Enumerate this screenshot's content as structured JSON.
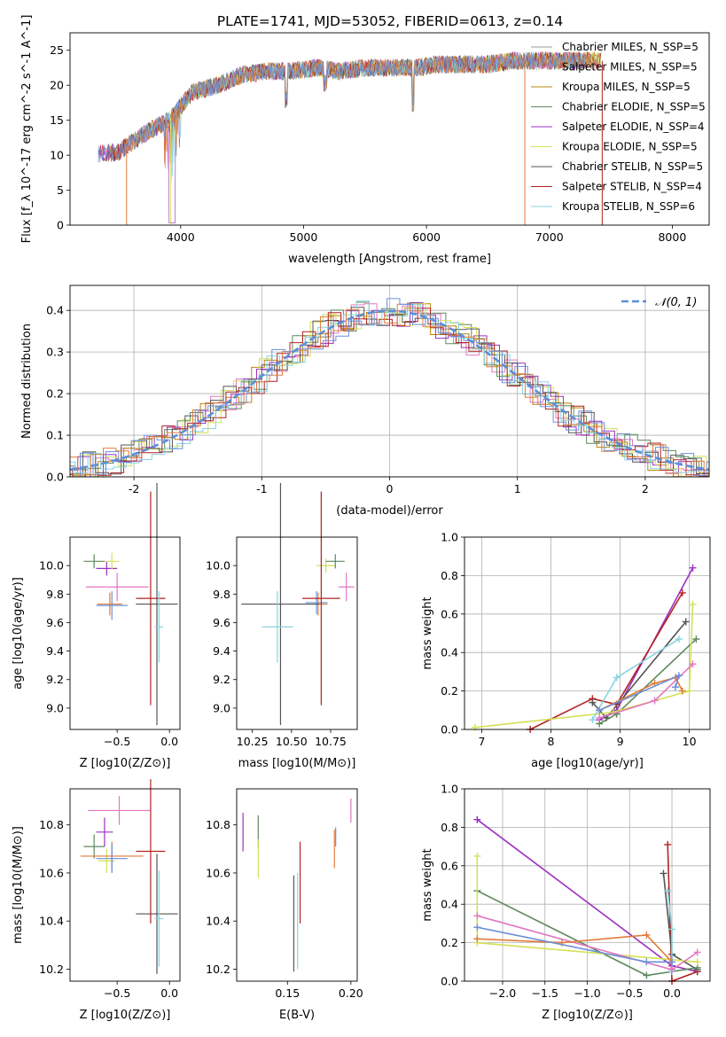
{
  "figure": {
    "title": "PLATE=1741, MJD=53052, FIBERID=0613, z=0.14"
  },
  "chart_data": [
    {
      "id": "spectrum",
      "type": "line",
      "xlabel": "wavelength [Angstrom, rest frame]",
      "ylabel": "Flux [f_λ 10^-17 erg cm^-2 s^-1 A^-1]",
      "xlim": [
        3100,
        8300
      ],
      "ylim": [
        0,
        27.5
      ],
      "xticks": [
        4000,
        5000,
        6000,
        7000,
        8000
      ],
      "yticks": [
        0,
        5,
        10,
        15,
        20,
        25
      ],
      "grid": false,
      "legend_position": "right",
      "spectrum_envelope": {
        "wavelength": [
          3350,
          3500,
          3700,
          3900,
          4100,
          4300,
          4500,
          4700,
          4900,
          5100,
          5300,
          5500,
          5700,
          5900,
          6100,
          6300,
          6500,
          6700,
          6900,
          7100,
          7300,
          7500
        ],
        "flux": [
          10.2,
          10.5,
          13,
          15,
          19,
          20,
          21.5,
          22,
          22,
          22.5,
          22,
          22.5,
          22.5,
          22.5,
          23,
          23,
          23,
          23.5,
          23.5,
          23.5,
          23.5,
          23.5
        ]
      },
      "series": [
        {
          "name": "Chabrier MILES, N_SSP=5",
          "color": "#ffffff"
        },
        {
          "name": "Salpeter MILES, N_SSP=5",
          "color": "#e377c2"
        },
        {
          "name": "Kroupa MILES, N_SSP=5",
          "color": "#b8860b"
        },
        {
          "name": "Chabrier ELODIE, N_SSP=5",
          "color": "#5e8a5e"
        },
        {
          "name": "Salpeter ELODIE, N_SSP=4",
          "color": "#9b30c0"
        },
        {
          "name": "Kroupa ELODIE, N_SSP=5",
          "color": "#d4e157"
        },
        {
          "name": "Chabrier STELIB, N_SSP=5",
          "color": "#555555"
        },
        {
          "name": "Salpeter STELIB, N_SSP=4",
          "color": "#b22222"
        },
        {
          "name": "Kroupa STELIB, N_SSP=6",
          "color": "#87d3e0"
        }
      ]
    },
    {
      "id": "residuals",
      "type": "line",
      "xlabel": "(data-model)/error",
      "ylabel": "Normed distribution",
      "xlim": [
        -2.5,
        2.5
      ],
      "ylim": [
        0,
        0.46
      ],
      "xticks": [
        -2,
        -1,
        0,
        1,
        2
      ],
      "yticks": [
        0.0,
        0.1,
        0.2,
        0.3,
        0.4
      ],
      "grid": true,
      "legend": "𝒩(0, 1)",
      "legend_position": "top-right",
      "gaussian": {
        "mean": 0,
        "sigma": 1,
        "color": "#5b8fd8"
      },
      "hist_colors": [
        "#e377c2",
        "#b8860b",
        "#5e8a5e",
        "#9b30c0",
        "#d4e157",
        "#555555",
        "#b22222",
        "#87d3e0",
        "#e07b39",
        "#6d8fd8"
      ]
    },
    {
      "id": "age_vs_Z",
      "type": "scatter",
      "xlabel": "Z [log10(Z/Z⊙)]",
      "ylabel": "age [log10(age/yr)]",
      "xlim": [
        -0.95,
        0.1
      ],
      "ylim": [
        8.85,
        10.2
      ],
      "xticks": [
        -0.5,
        0.0
      ],
      "xtick_labels": [
        "−0.5",
        "0.0"
      ],
      "yticks": [
        9.0,
        9.2,
        9.4,
        9.6,
        9.8,
        10.0
      ],
      "grid": false,
      "points": [
        {
          "x": -0.72,
          "y": 10.03,
          "xerr": 0.1,
          "yerr": 0.05,
          "color": "#5e8a5e"
        },
        {
          "x": -0.6,
          "y": 9.98,
          "xerr": 0.1,
          "yerr": 0.05,
          "color": "#9b30c0"
        },
        {
          "x": -0.55,
          "y": 10.03,
          "xerr": 0.07,
          "yerr": 0.06,
          "color": "#d4e157"
        },
        {
          "x": -0.5,
          "y": 9.85,
          "xerr": 0.3,
          "yerr": 0.1,
          "color": "#e377c2"
        },
        {
          "x": -0.57,
          "y": 9.73,
          "xerr": 0.12,
          "yerr": 0.08,
          "color": "#e07b39"
        },
        {
          "x": -0.55,
          "y": 9.72,
          "xerr": 0.15,
          "yerr": 0.1,
          "color": "#6d8fd8"
        },
        {
          "x": -0.12,
          "y": 9.73,
          "xerr": 0.2,
          "yerr": 0.85,
          "color": "#555555"
        },
        {
          "x": -0.18,
          "y": 9.77,
          "xerr": 0.14,
          "yerr": 0.75,
          "color": "#b22222"
        },
        {
          "x": -0.1,
          "y": 9.57,
          "xerr": 0.04,
          "yerr": 0.25,
          "color": "#87d3e0"
        }
      ]
    },
    {
      "id": "age_vs_mass",
      "type": "scatter",
      "xlabel": "mass [log10(M/M⊙)]",
      "ylabel": "",
      "xlim": [
        10.15,
        10.92
      ],
      "ylim": [
        8.85,
        10.2
      ],
      "xticks": [
        10.25,
        10.5,
        10.75
      ],
      "xtick_labels": [
        "10.25",
        "10.50",
        "10.75"
      ],
      "yticks": [
        9.0,
        9.2,
        9.4,
        9.6,
        9.8,
        10.0
      ],
      "grid": false,
      "points": [
        {
          "x": 10.72,
          "y": 10.0,
          "xerr": 0.06,
          "yerr": 0.05,
          "color": "#d4e157"
        },
        {
          "x": 10.78,
          "y": 10.03,
          "xerr": 0.06,
          "yerr": 0.05,
          "color": "#5e8a5e"
        },
        {
          "x": 10.85,
          "y": 9.85,
          "xerr": 0.05,
          "yerr": 0.1,
          "color": "#e377c2"
        },
        {
          "x": 10.67,
          "y": 9.73,
          "xerr": 0.06,
          "yerr": 0.08,
          "color": "#e07b39"
        },
        {
          "x": 10.66,
          "y": 9.74,
          "xerr": 0.07,
          "yerr": 0.08,
          "color": "#6d8fd8"
        },
        {
          "x": 10.43,
          "y": 9.73,
          "xerr": 0.25,
          "yerr": 0.85,
          "color": "#555555"
        },
        {
          "x": 10.69,
          "y": 9.77,
          "xerr": 0.12,
          "yerr": 0.75,
          "color": "#b22222"
        },
        {
          "x": 10.41,
          "y": 9.57,
          "xerr": 0.1,
          "yerr": 0.25,
          "color": "#87d3e0"
        }
      ]
    },
    {
      "id": "weight_vs_age",
      "type": "line",
      "xlabel": "age [log10(age/yr)]",
      "ylabel": "mass weight",
      "xlim": [
        6.75,
        10.3
      ],
      "ylim": [
        0,
        1.0
      ],
      "xticks": [
        7,
        8,
        9,
        10
      ],
      "yticks": [
        0.0,
        0.2,
        0.4,
        0.6,
        0.8,
        1.0
      ],
      "grid": true,
      "series": [
        {
          "color": "#9b30c0",
          "x": [
            8.7,
            8.95,
            10.05
          ],
          "y": [
            0.05,
            0.1,
            0.84
          ]
        },
        {
          "color": "#b22222",
          "x": [
            7.7,
            8.6,
            8.95,
            9.9
          ],
          "y": [
            0.0,
            0.16,
            0.13,
            0.71
          ]
        },
        {
          "color": "#555555",
          "x": [
            8.6,
            8.8,
            9.95
          ],
          "y": [
            0.14,
            0.06,
            0.56
          ]
        },
        {
          "color": "#5e8a5e",
          "x": [
            8.7,
            8.95,
            10.1
          ],
          "y": [
            0.03,
            0.08,
            0.47
          ]
        },
        {
          "color": "#d4e157",
          "x": [
            6.9,
            8.9,
            10.0,
            10.05
          ],
          "y": [
            0.01,
            0.09,
            0.2,
            0.65
          ]
        },
        {
          "color": "#87d3e0",
          "x": [
            8.6,
            8.95,
            9.85
          ],
          "y": [
            0.05,
            0.27,
            0.47
          ]
        },
        {
          "color": "#e377c2",
          "x": [
            8.7,
            9.5,
            10.05
          ],
          "y": [
            0.06,
            0.15,
            0.34
          ]
        },
        {
          "color": "#e07b39",
          "x": [
            8.7,
            9.5,
            9.8,
            9.9
          ],
          "y": [
            0.1,
            0.24,
            0.27,
            0.2
          ]
        },
        {
          "color": "#6d8fd8",
          "x": [
            8.7,
            9.85,
            9.8
          ],
          "y": [
            0.1,
            0.28,
            0.22
          ]
        }
      ]
    },
    {
      "id": "mass_vs_Z",
      "type": "scatter",
      "xlabel": "Z [log10(Z/Z⊙)]",
      "ylabel": "mass [log10(M/M⊙)]",
      "xlim": [
        -0.95,
        0.1
      ],
      "ylim": [
        10.15,
        10.95
      ],
      "xticks": [
        -0.5,
        0.0
      ],
      "xtick_labels": [
        "−0.5",
        "0.0"
      ],
      "yticks": [
        10.2,
        10.4,
        10.6,
        10.8
      ],
      "grid": false,
      "points": [
        {
          "x": -0.72,
          "y": 10.71,
          "xerr": 0.1,
          "yerr": 0.05,
          "color": "#5e8a5e"
        },
        {
          "x": -0.62,
          "y": 10.77,
          "xerr": 0.08,
          "yerr": 0.06,
          "color": "#9b30c0"
        },
        {
          "x": -0.6,
          "y": 10.65,
          "xerr": 0.08,
          "yerr": 0.05,
          "color": "#d4e157"
        },
        {
          "x": -0.48,
          "y": 10.86,
          "xerr": 0.3,
          "yerr": 0.06,
          "color": "#e377c2"
        },
        {
          "x": -0.55,
          "y": 10.67,
          "xerr": 0.3,
          "yerr": 0.06,
          "color": "#e07b39"
        },
        {
          "x": -0.55,
          "y": 10.66,
          "xerr": 0.15,
          "yerr": 0.06,
          "color": "#6d8fd8"
        },
        {
          "x": -0.12,
          "y": 10.43,
          "xerr": 0.2,
          "yerr": 0.25,
          "color": "#555555"
        },
        {
          "x": -0.18,
          "y": 10.69,
          "xerr": 0.14,
          "yerr": 0.3,
          "color": "#b22222"
        },
        {
          "x": -0.1,
          "y": 10.41,
          "xerr": 0.04,
          "yerr": 0.2,
          "color": "#87d3e0"
        }
      ]
    },
    {
      "id": "mass_vs_EBV",
      "type": "scatter",
      "xlabel": "E(B-V)",
      "ylabel": "",
      "xlim": [
        0.11,
        0.205
      ],
      "ylim": [
        10.15,
        10.95
      ],
      "xticks": [
        0.15,
        0.2
      ],
      "xtick_labels": [
        "0.15",
        "0.20"
      ],
      "yticks": [
        10.2,
        10.4,
        10.6,
        10.8
      ],
      "grid": false,
      "points": [
        {
          "x": 0.115,
          "y": 10.77,
          "xerr": 0,
          "yerr": 0.08,
          "color": "#9b30c0"
        },
        {
          "x": 0.127,
          "y": 10.77,
          "xerr": 0,
          "yerr": 0.07,
          "color": "#5e8a5e"
        },
        {
          "x": 0.127,
          "y": 10.66,
          "xerr": 0,
          "yerr": 0.08,
          "color": "#d4e157"
        },
        {
          "x": 0.155,
          "y": 10.39,
          "xerr": 0,
          "yerr": 0.2,
          "color": "#555555"
        },
        {
          "x": 0.158,
          "y": 10.4,
          "xerr": 0,
          "yerr": 0.2,
          "color": "#87d3e0"
        },
        {
          "x": 0.16,
          "y": 10.56,
          "xerr": 0,
          "yerr": 0.17,
          "color": "#b22222"
        },
        {
          "x": 0.187,
          "y": 10.7,
          "xerr": 0,
          "yerr": 0.08,
          "color": "#e07b39"
        },
        {
          "x": 0.188,
          "y": 10.75,
          "xerr": 0,
          "yerr": 0.04,
          "color": "#6d8fd8"
        },
        {
          "x": 0.2,
          "y": 10.86,
          "xerr": 0,
          "yerr": 0.05,
          "color": "#e377c2"
        }
      ]
    },
    {
      "id": "weight_vs_Z",
      "type": "line",
      "xlabel": "Z [log10(Z/Z⊙)]",
      "ylabel": "mass weight",
      "xlim": [
        -2.45,
        0.45
      ],
      "ylim": [
        0,
        1.0
      ],
      "xticks": [
        -2.0,
        -1.5,
        -1.0,
        -0.5,
        0.0
      ],
      "xtick_labels": [
        "−2.0",
        "−1.5",
        "−1.0",
        "−0.5",
        "0.0"
      ],
      "yticks": [
        0.0,
        0.2,
        0.4,
        0.6,
        0.8,
        1.0
      ],
      "grid": true,
      "series": [
        {
          "color": "#9b30c0",
          "x": [
            -2.3,
            0.0,
            0.3
          ],
          "y": [
            0.84,
            0.08,
            0.05
          ]
        },
        {
          "color": "#b22222",
          "x": [
            -0.05,
            0.0,
            0.3
          ],
          "y": [
            0.71,
            0.0,
            0.05
          ]
        },
        {
          "color": "#555555",
          "x": [
            -0.1,
            0.0,
            0.3
          ],
          "y": [
            0.56,
            0.14,
            0.06
          ]
        },
        {
          "color": "#5e8a5e",
          "x": [
            -2.3,
            -0.3,
            0.3
          ],
          "y": [
            0.47,
            0.03,
            0.07
          ]
        },
        {
          "color": "#d4e157",
          "x": [
            -2.3,
            -2.3,
            0.3
          ],
          "y": [
            0.65,
            0.2,
            0.1
          ]
        },
        {
          "color": "#87d3e0",
          "x": [
            -0.05,
            0.0,
            0.0
          ],
          "y": [
            0.47,
            0.27,
            0.05
          ]
        },
        {
          "color": "#e377c2",
          "x": [
            -2.3,
            0.0,
            0.3
          ],
          "y": [
            0.34,
            0.06,
            0.15
          ]
        },
        {
          "color": "#e07b39",
          "x": [
            -2.3,
            -1.3,
            -0.3,
            0.0
          ],
          "y": [
            0.22,
            0.2,
            0.24,
            0.1
          ]
        },
        {
          "color": "#6d8fd8",
          "x": [
            -2.3,
            -0.3,
            0.0
          ],
          "y": [
            0.28,
            0.1,
            0.1
          ]
        }
      ]
    }
  ]
}
